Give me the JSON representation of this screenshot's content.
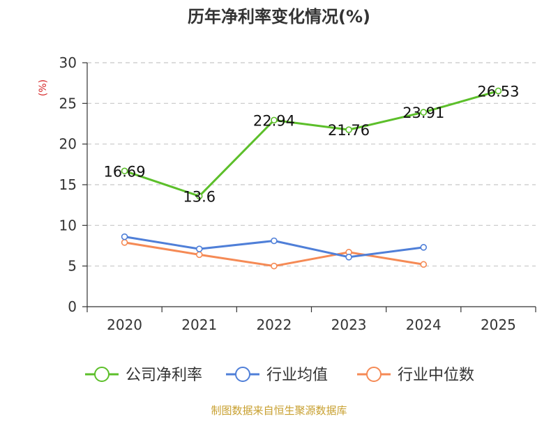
{
  "chart_data": {
    "type": "line",
    "title": "历年净利率变化情况(%)",
    "ylabel": "(%)",
    "xlabel": "",
    "categories": [
      "2020",
      "2021",
      "2022",
      "2023",
      "2024",
      "2025"
    ],
    "ylim": [
      0,
      30
    ],
    "yticks": [
      0,
      5,
      10,
      15,
      20,
      25,
      30
    ],
    "grid": true,
    "legend_position": "bottom",
    "series": [
      {
        "name": "公司净利率",
        "color": "#5cbf2a",
        "show_labels": true,
        "values": [
          16.69,
          13.6,
          22.94,
          21.76,
          23.91,
          26.53
        ]
      },
      {
        "name": "行业均值",
        "color": "#4f7fd8",
        "show_labels": false,
        "values": [
          8.6,
          7.1,
          8.1,
          6.1,
          7.3,
          null
        ]
      },
      {
        "name": "行业中位数",
        "color": "#f58a55",
        "show_labels": false,
        "values": [
          7.9,
          6.4,
          5.0,
          6.7,
          5.2,
          null
        ]
      }
    ]
  },
  "colors": {
    "ylabel": "#d62728",
    "source": "#c8a030"
  },
  "source": "制图数据来自恒生聚源数据库"
}
